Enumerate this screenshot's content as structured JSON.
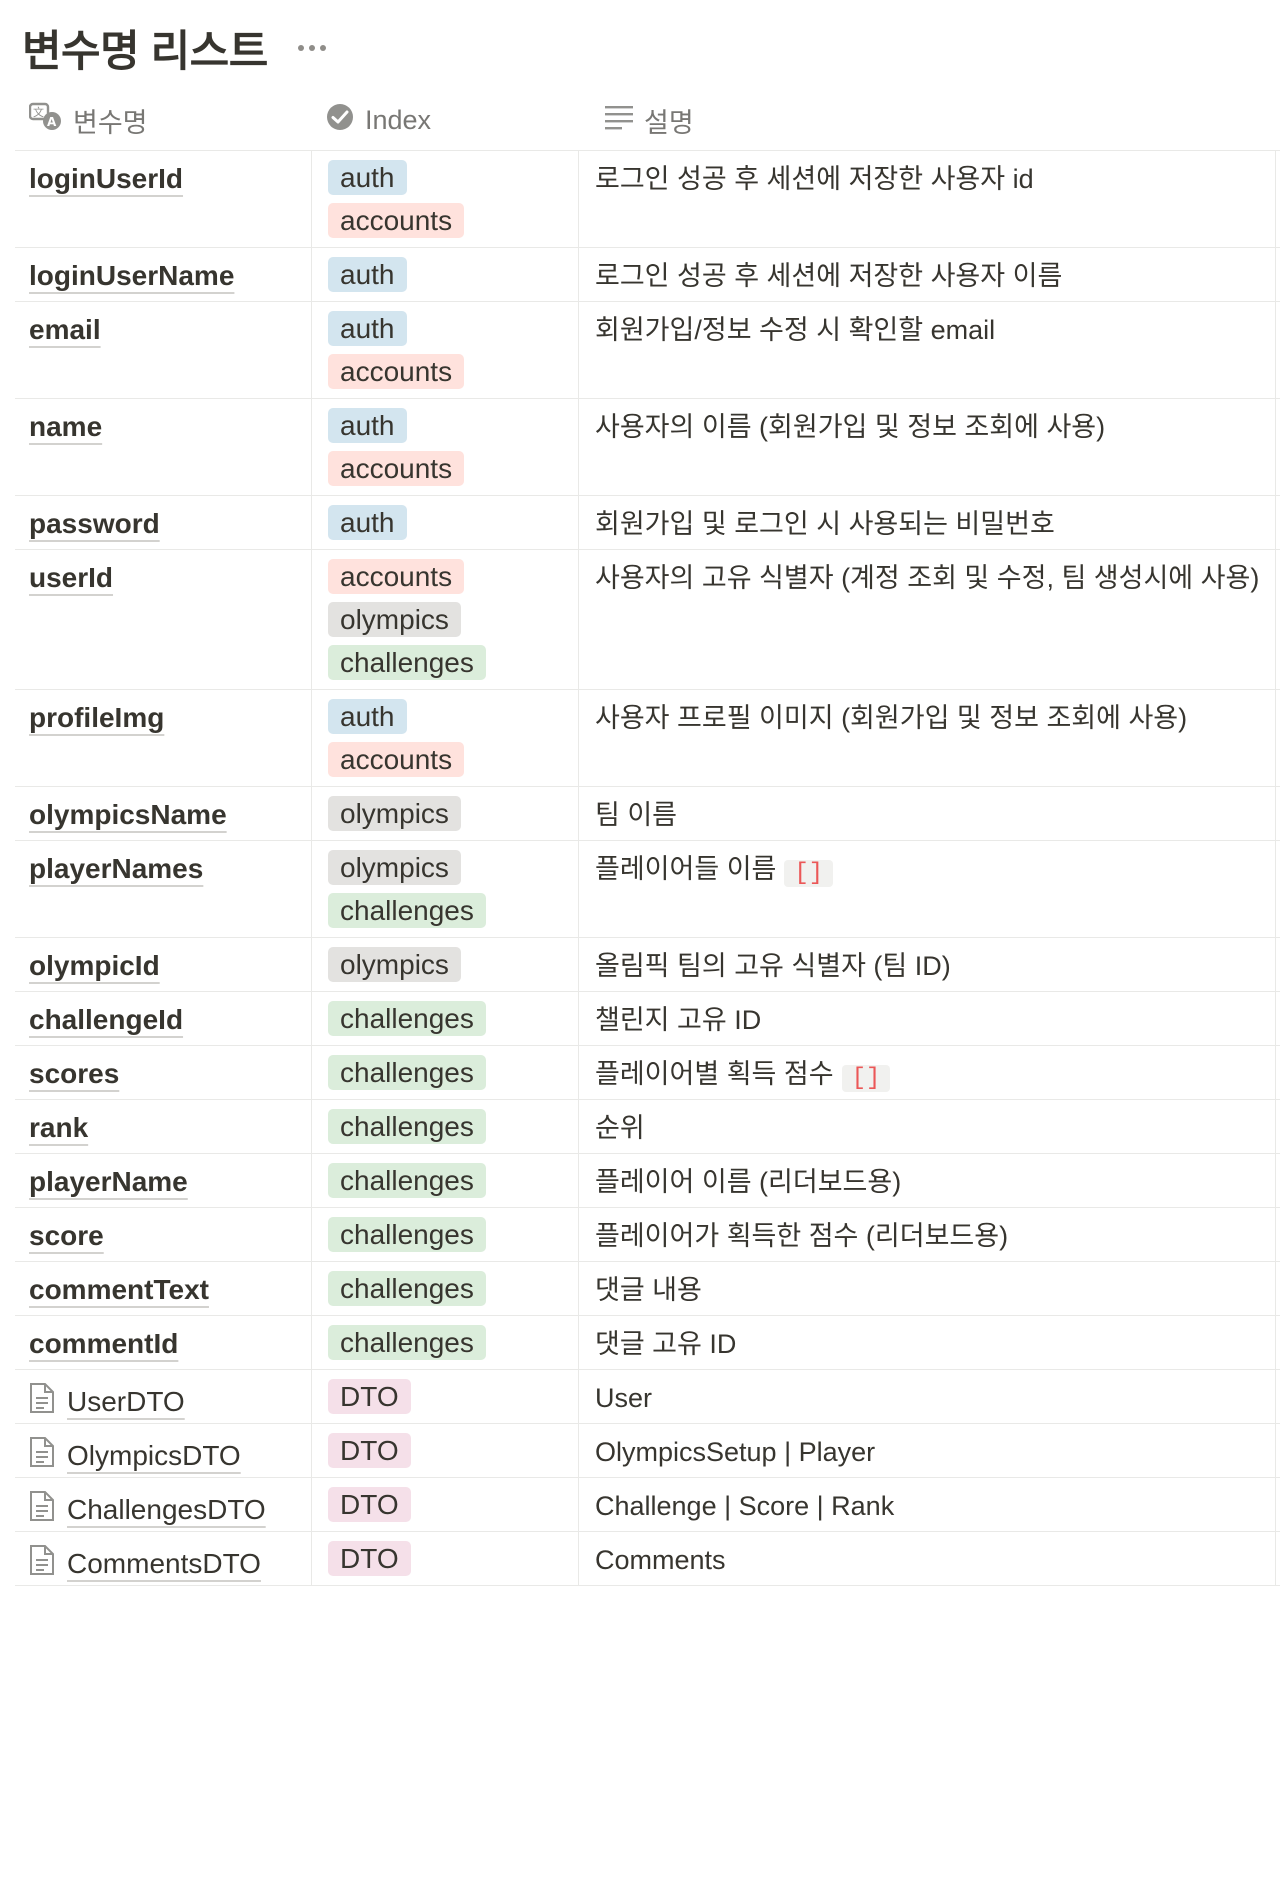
{
  "title": "변수명 리스트",
  "columns": [
    {
      "label": "변수명",
      "icon": "multi-language-icon"
    },
    {
      "label": "Index",
      "icon": "check-circle-icon"
    },
    {
      "label": "설명",
      "icon": "text-lines-icon"
    }
  ],
  "tag_colors": {
    "auth": "#d3e5ef",
    "accounts": "#ffe2dd",
    "olympics": "#e3e2e0",
    "challenges": "#dbeddb",
    "DTO": "#f5e0e9"
  },
  "rows": [
    {
      "name": "loginUserId",
      "tags": [
        "auth",
        "accounts"
      ],
      "desc": "로그인 성공 후 세션에 저장한 사용자 id",
      "code": ""
    },
    {
      "name": "loginUserName",
      "tags": [
        "auth"
      ],
      "desc": "로그인 성공 후 세션에 저장한 사용자 이름",
      "code": ""
    },
    {
      "name": "email",
      "tags": [
        "auth",
        "accounts"
      ],
      "desc": "회원가입/정보 수정 시 확인할 email",
      "code": ""
    },
    {
      "name": "name",
      "tags": [
        "auth",
        "accounts"
      ],
      "desc": "사용자의 이름 (회원가입 및 정보 조회에 사용)",
      "code": ""
    },
    {
      "name": "password",
      "tags": [
        "auth"
      ],
      "desc": "회원가입 및 로그인 시 사용되는 비밀번호",
      "code": ""
    },
    {
      "name": "userId",
      "tags": [
        "accounts",
        "olympics",
        "challenges"
      ],
      "desc": "사용자의 고유 식별자 (계정 조회 및 수정, 팀 생성시에 사용)",
      "code": ""
    },
    {
      "name": "profileImg",
      "tags": [
        "auth",
        "accounts"
      ],
      "desc": "사용자 프로필 이미지 (회원가입 및 정보 조회에 사용)",
      "code": ""
    },
    {
      "name": "olympicsName",
      "tags": [
        "olympics"
      ],
      "desc": "팀 이름",
      "code": ""
    },
    {
      "name": "playerNames",
      "tags": [
        "olympics",
        "challenges"
      ],
      "desc": "플레이어들 이름",
      "code": "[]"
    },
    {
      "name": "olympicId",
      "tags": [
        "olympics"
      ],
      "desc": "올림픽 팀의 고유 식별자 (팀 ID)",
      "code": ""
    },
    {
      "name": "challengeId",
      "tags": [
        "challenges"
      ],
      "desc": "챌린지 고유 ID",
      "code": ""
    },
    {
      "name": "scores",
      "tags": [
        "challenges"
      ],
      "desc": "플레이어별 획득 점수",
      "code": "[]"
    },
    {
      "name": "rank",
      "tags": [
        "challenges"
      ],
      "desc": "순위",
      "code": ""
    },
    {
      "name": "playerName",
      "tags": [
        "challenges"
      ],
      "desc": "플레이어 이름 (리더보드용)",
      "code": ""
    },
    {
      "name": "score",
      "tags": [
        "challenges"
      ],
      "desc": "플레이어가 획득한 점수 (리더보드용)",
      "code": ""
    },
    {
      "name": "commentText",
      "tags": [
        "challenges"
      ],
      "desc": "댓글 내용",
      "code": ""
    },
    {
      "name": "commentId",
      "tags": [
        "challenges"
      ],
      "desc": "댓글 고유 ID",
      "code": ""
    },
    {
      "name": "UserDTO",
      "page": true,
      "tags": [
        "DTO"
      ],
      "desc": "User",
      "code": ""
    },
    {
      "name": "OlympicsDTO",
      "page": true,
      "tags": [
        "DTO"
      ],
      "desc": "OlympicsSetup | Player",
      "code": ""
    },
    {
      "name": "ChallengesDTO",
      "page": true,
      "tags": [
        "DTO"
      ],
      "desc": "Challenge | Score | Rank",
      "code": ""
    },
    {
      "name": "CommentsDTO",
      "page": true,
      "tags": [
        "DTO"
      ],
      "desc": "Comments",
      "code": ""
    }
  ]
}
